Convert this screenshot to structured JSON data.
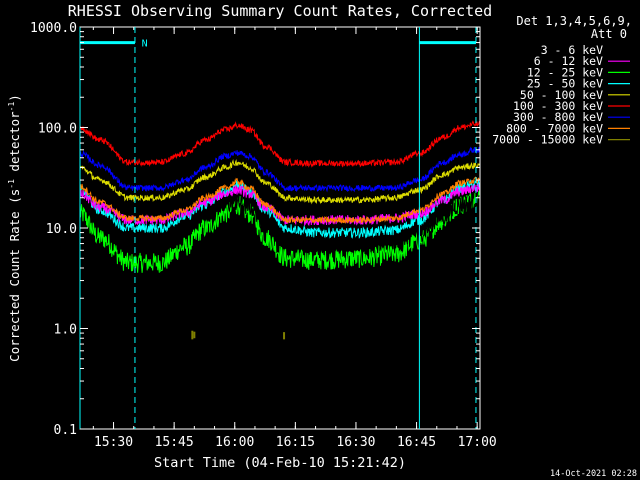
{
  "chart_data": {
    "type": "line",
    "title": "RHESSI Observing Summary Count Rates, Corrected",
    "xlabel": "Start Time (04-Feb-10 15:21:42)",
    "ylabel_main": "Corrected Count Rate (s",
    "ylabel_sup1": "-1",
    "ylabel_mid": " detector",
    "ylabel_sup2": "-1",
    "ylabel_end": ")",
    "yscale": "log",
    "ylim": [
      0.1,
      1000
    ],
    "xlim": [
      0,
      99
    ],
    "x_ticks": [
      {
        "t": 8.3,
        "label": "15:30"
      },
      {
        "t": 23.3,
        "label": "15:45"
      },
      {
        "t": 38.3,
        "label": "16:00"
      },
      {
        "t": 53.3,
        "label": "16:15"
      },
      {
        "t": 68.3,
        "label": "16:30"
      },
      {
        "t": 83.3,
        "label": "16:45"
      },
      {
        "t": 98.3,
        "label": "17:00"
      }
    ],
    "y_ticks": [
      {
        "v": 0.1,
        "label": "0.1"
      },
      {
        "v": 1,
        "label": "1.0"
      },
      {
        "v": 10,
        "label": "10.0"
      },
      {
        "v": 100,
        "label": "100.0"
      },
      {
        "v": 1000,
        "label": "1000.0"
      }
    ],
    "legend_header": [
      "Det 1,3,4,5,6,9,",
      "Att 0"
    ],
    "legend_position": "right",
    "series": [
      {
        "name": "3 - 6 keV",
        "color": "#000000",
        "stroke": "#000000",
        "anchors": [
          [
            0,
            20
          ],
          [
            5,
            14
          ],
          [
            12,
            8
          ],
          [
            20,
            8
          ],
          [
            26,
            11
          ],
          [
            31,
            14
          ],
          [
            36,
            17
          ],
          [
            39,
            18
          ],
          [
            42,
            16
          ],
          [
            46,
            11
          ],
          [
            51,
            7.5
          ],
          [
            58,
            7
          ],
          [
            70,
            7
          ],
          [
            78,
            7.5
          ],
          [
            84,
            9
          ],
          [
            90,
            13
          ],
          [
            94,
            17
          ],
          [
            98,
            18
          ]
        ],
        "noise": 0.09
      },
      {
        "name": "6 - 12 keV",
        "color": "#ff00ff",
        "stroke": "#ff00ff",
        "anchors": [
          [
            0,
            22
          ],
          [
            5,
            16
          ],
          [
            12,
            12
          ],
          [
            20,
            12
          ],
          [
            26,
            14
          ],
          [
            31,
            18
          ],
          [
            36,
            22
          ],
          [
            39,
            24
          ],
          [
            42,
            22
          ],
          [
            46,
            16
          ],
          [
            51,
            12
          ],
          [
            58,
            12
          ],
          [
            70,
            12
          ],
          [
            78,
            12.5
          ],
          [
            84,
            14
          ],
          [
            90,
            19
          ],
          [
            94,
            23
          ],
          [
            98,
            25
          ]
        ],
        "noise": 0.05
      },
      {
        "name": "12 - 25 keV",
        "color": "#00ff00",
        "stroke": "#00ff00",
        "anchors": [
          [
            0,
            14
          ],
          [
            5,
            8
          ],
          [
            12,
            4.5
          ],
          [
            20,
            4.5
          ],
          [
            26,
            6.5
          ],
          [
            31,
            10
          ],
          [
            36,
            14
          ],
          [
            39,
            17
          ],
          [
            42,
            14
          ],
          [
            46,
            8
          ],
          [
            51,
            5
          ],
          [
            58,
            4.8
          ],
          [
            70,
            5
          ],
          [
            78,
            5.5
          ],
          [
            84,
            7.5
          ],
          [
            90,
            12
          ],
          [
            94,
            17
          ],
          [
            98,
            20
          ]
        ],
        "noise": 0.1
      },
      {
        "name": "25 - 50 keV",
        "color": "#00ffff",
        "stroke": "#00ffff",
        "anchors": [
          [
            0,
            24
          ],
          [
            5,
            15
          ],
          [
            12,
            10
          ],
          [
            20,
            10
          ],
          [
            26,
            13
          ],
          [
            31,
            17
          ],
          [
            36,
            23
          ],
          [
            39,
            27
          ],
          [
            42,
            23
          ],
          [
            46,
            15
          ],
          [
            51,
            10
          ],
          [
            58,
            9
          ],
          [
            70,
            9
          ],
          [
            78,
            9.5
          ],
          [
            84,
            12
          ],
          [
            90,
            19
          ],
          [
            94,
            25
          ],
          [
            98,
            27
          ]
        ],
        "noise": 0.05
      },
      {
        "name": "50 - 100 keV",
        "color": "#ffff00",
        "stroke": "#dddd00",
        "anchors": [
          [
            0,
            40
          ],
          [
            5,
            30
          ],
          [
            12,
            20
          ],
          [
            20,
            20
          ],
          [
            26,
            24
          ],
          [
            31,
            32
          ],
          [
            36,
            40
          ],
          [
            39,
            45
          ],
          [
            42,
            40
          ],
          [
            46,
            28
          ],
          [
            51,
            20
          ],
          [
            58,
            19
          ],
          [
            70,
            19
          ],
          [
            78,
            20
          ],
          [
            84,
            24
          ],
          [
            90,
            34
          ],
          [
            94,
            40
          ],
          [
            98,
            42
          ]
        ],
        "noise": 0.03
      },
      {
        "name": "100 - 300 keV",
        "color": "#ff0000",
        "stroke": "#ff0000",
        "anchors": [
          [
            0,
            100
          ],
          [
            5,
            75
          ],
          [
            12,
            45
          ],
          [
            20,
            45
          ],
          [
            26,
            55
          ],
          [
            31,
            75
          ],
          [
            36,
            95
          ],
          [
            39,
            105
          ],
          [
            42,
            95
          ],
          [
            46,
            65
          ],
          [
            51,
            45
          ],
          [
            58,
            44
          ],
          [
            70,
            44
          ],
          [
            78,
            45
          ],
          [
            84,
            55
          ],
          [
            90,
            80
          ],
          [
            94,
            100
          ],
          [
            98,
            108
          ]
        ],
        "noise": 0.03
      },
      {
        "name": "300 - 800 keV",
        "color": "#0000ff",
        "stroke": "#0000ff",
        "anchors": [
          [
            0,
            55
          ],
          [
            5,
            42
          ],
          [
            12,
            25
          ],
          [
            20,
            25
          ],
          [
            26,
            30
          ],
          [
            31,
            40
          ],
          [
            36,
            52
          ],
          [
            39,
            56
          ],
          [
            42,
            52
          ],
          [
            46,
            36
          ],
          [
            51,
            25
          ],
          [
            58,
            25
          ],
          [
            70,
            25
          ],
          [
            78,
            25
          ],
          [
            84,
            30
          ],
          [
            90,
            45
          ],
          [
            94,
            54
          ],
          [
            98,
            60
          ]
        ],
        "noise": 0.03
      },
      {
        "name": "800 - 7000 keV",
        "color": "#ff8000",
        "stroke": "#ff8000",
        "anchors": [
          [
            0,
            26
          ],
          [
            5,
            18
          ],
          [
            12,
            12.5
          ],
          [
            20,
            12.5
          ],
          [
            26,
            15
          ],
          [
            31,
            20
          ],
          [
            36,
            25
          ],
          [
            39,
            29
          ],
          [
            42,
            25
          ],
          [
            46,
            17
          ],
          [
            51,
            12
          ],
          [
            58,
            12
          ],
          [
            70,
            12
          ],
          [
            78,
            12.5
          ],
          [
            84,
            15
          ],
          [
            90,
            22
          ],
          [
            94,
            28
          ],
          [
            98,
            30
          ]
        ],
        "noise": 0.03
      },
      {
        "name": "7000 - 15000 keV",
        "color": "#808000",
        "stroke": "#808000",
        "anchors": [],
        "noise": 0
      }
    ],
    "spikes_7000": [
      {
        "t": 27.8,
        "low": 0.78,
        "high": 0.95
      },
      {
        "t": 28.3,
        "low": 0.8,
        "high": 0.93
      },
      {
        "t": 50.5,
        "low": 0.78,
        "high": 0.92
      }
    ],
    "flat_7000": {
      "t_start": 97.5,
      "t_end": 103,
      "value": 1.0
    },
    "markers": {
      "solid_lines_t": [
        0,
        84.0
      ],
      "dashed_lines_t": [
        13.6,
        98.0
      ],
      "bars": [
        {
          "t_start": 0,
          "t_end": 13.6,
          "value": 700
        },
        {
          "t_start": 84.0,
          "t_end": 98.0,
          "value": 700
        }
      ],
      "label": "N",
      "label_t": 15.0
    },
    "timestamp": "14-Oct-2021 02:28"
  }
}
